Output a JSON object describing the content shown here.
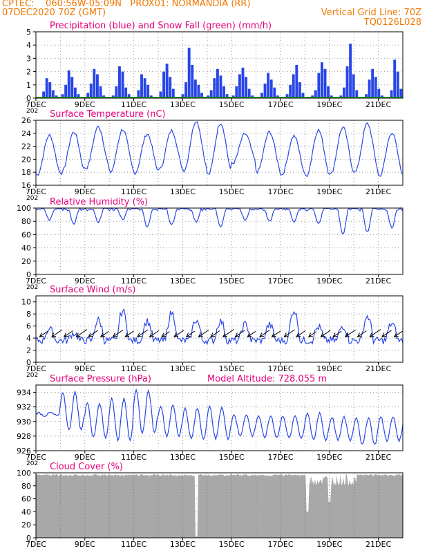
{
  "header": {
    "left_line1": "CPTEC:    060:56W-05:09N   PROX01: NORMANDIA (RR)",
    "left_line2": "07DEC2020 70Z (GMT)",
    "right_line2": "Vertical Grid Line: 70Z",
    "right_line3": "TQ0126L028"
  },
  "x_axis": {
    "ticks": [
      "7DEC",
      "9DEC",
      "11DEC",
      "13DEC",
      "15DEC",
      "17DEC",
      "19DEC",
      "21DEC"
    ],
    "year_fragment": "202",
    "days_span": 15
  },
  "colors": {
    "header": "#f07800",
    "title": "#e8007c",
    "series": "#2846e6",
    "snow": "#17a017",
    "cloud": "#a8a8a8",
    "wind_arrow": "#000000"
  },
  "chart_data": [
    {
      "type": "bar",
      "title": "Precipitation (blue) and Snow Fall (green) (mm/h)",
      "ylim": [
        0,
        5
      ],
      "yticks": [
        "0",
        "1",
        "2",
        "3",
        "4",
        "5"
      ],
      "series": [
        {
          "name": "Precipitation",
          "color": "#2846e6",
          "values": [
            0,
            0.1,
            0.5,
            1.5,
            1.2,
            0.6,
            0.2,
            0,
            0.3,
            1.0,
            2.1,
            1.6,
            0.8,
            0.3,
            0,
            0.1,
            0.4,
            1.1,
            2.2,
            1.8,
            0.9,
            0.2,
            0,
            0,
            0.2,
            0.9,
            2.4,
            2.0,
            0.8,
            0.3,
            0,
            0.1,
            0.6,
            1.8,
            1.5,
            1.0,
            0.2,
            0,
            0.1,
            0.5,
            2.0,
            2.6,
            1.6,
            0.7,
            0.1,
            0,
            0.3,
            1.2,
            3.8,
            2.5,
            1.4,
            1.0,
            0.4,
            0.1,
            0.2,
            0.6,
            1.5,
            2.2,
            1.7,
            0.9,
            0.3,
            0,
            0.2,
            0.9,
            1.8,
            2.3,
            1.6,
            0.7,
            0.2,
            0,
            0.1,
            0.4,
            1.1,
            1.9,
            1.4,
            0.8,
            0.2,
            0,
            0.1,
            0.3,
            1.0,
            1.8,
            2.5,
            1.2,
            0.4,
            0.1,
            0,
            0.2,
            0.6,
            1.9,
            2.7,
            2.2,
            0.9,
            0.2,
            0,
            0,
            0.2,
            0.8,
            2.4,
            4.1,
            1.8,
            0.6,
            0.1,
            0,
            0.3,
            1.4,
            2.2,
            1.6,
            0.7,
            0.2,
            0,
            0.1,
            0.6,
            2.9,
            2.0,
            0.7
          ]
        },
        {
          "name": "Snow Fall",
          "color": "#17a017",
          "values": [
            0
          ]
        }
      ]
    },
    {
      "type": "line",
      "title": "Surface Temperature (nC)",
      "ylim": [
        16,
        26
      ],
      "yticks": [
        "16",
        "18",
        "20",
        "22",
        "24",
        "26"
      ],
      "series": [
        {
          "name": "temperature",
          "daily_min": [
            17.6,
            17.9,
            18.6,
            18.0,
            17.9,
            18.4,
            18.3,
            17.6,
            19.4,
            18.1,
            17.6,
            17.4,
            17.7,
            18.0,
            17.4
          ],
          "daily_max": [
            23.7,
            24.2,
            25.0,
            24.6,
            23.9,
            24.4,
            25.9,
            25.6,
            23.9,
            24.2,
            23.6,
            24.5,
            24.9,
            25.5,
            24.1
          ]
        }
      ]
    },
    {
      "type": "line",
      "title": "Relative Humidity (%)",
      "ylim": [
        0,
        100
      ],
      "yticks": [
        "0",
        "20",
        "40",
        "60",
        "80",
        "100"
      ],
      "series": [
        {
          "name": "humidity",
          "daily_min": [
            82,
            76,
            78,
            83,
            72,
            75,
            79,
            72,
            82,
            80,
            80,
            76,
            60,
            64,
            70
          ]
        }
      ]
    },
    {
      "type": "line",
      "title": "Surface Wind (m/s)",
      "ylim": [
        0,
        11
      ],
      "yticks": [
        "0",
        "2",
        "4",
        "6",
        "8",
        "10"
      ],
      "series": [
        {
          "name": "wind speed",
          "daily_max": [
            5.5,
            4.8,
            7.0,
            8.5,
            6.8,
            8.2,
            7.0,
            6.8,
            6.3,
            6.2,
            8.6,
            5.8,
            6.0,
            7.6,
            6.4
          ]
        }
      ]
    },
    {
      "type": "line",
      "title": "Surface Pressure (hPa)",
      "annotation": "Model Altitude: 728.055  m",
      "ylim": [
        926,
        935
      ],
      "yticks": [
        "926",
        "928",
        "930",
        "932",
        "934"
      ],
      "series": [
        {
          "name": "pressure",
          "daily_max": [
            931.2,
            934.0,
            932.6,
            933.2,
            934.2,
            932.2,
            931.8,
            932.0,
            931.0,
            930.8,
            930.8,
            931.2,
            930.6,
            930.6,
            930.6
          ],
          "daily_min": [
            930.8,
            928.8,
            927.8,
            927.5,
            928.4,
            928.0,
            927.6,
            927.6,
            928.0,
            927.8,
            927.7,
            927.4,
            927.4,
            926.8,
            927.4
          ]
        }
      ]
    },
    {
      "type": "area",
      "title": "Cloud Cover (%)",
      "ylim": [
        0,
        100
      ],
      "yticks": [
        "0",
        "20",
        "40",
        "60",
        "80",
        "100"
      ],
      "series": [
        {
          "name": "cloud cover",
          "typical": 98,
          "dips": [
            {
              "day": 6.55,
              "value": 2
            },
            {
              "day": 11.1,
              "value": 40
            },
            {
              "day": 12.0,
              "value": 55
            }
          ]
        }
      ]
    }
  ]
}
